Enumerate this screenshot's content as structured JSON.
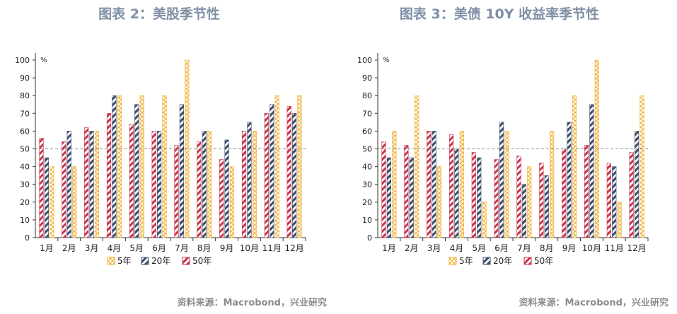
{
  "colors": {
    "five_year": "#f2b33d",
    "twenty_year": "#3d4f6e",
    "fifty_year": "#c8334a",
    "title": "#7f8fa6",
    "reference_line": "#8c8c8c"
  },
  "chart_data": [
    {
      "type": "bar",
      "title": "图表 2：美股季节性",
      "unit": "%",
      "categories": [
        "1月",
        "2月",
        "3月",
        "4月",
        "5月",
        "6月",
        "7月",
        "8月",
        "9月",
        "10月",
        "11月",
        "12月"
      ],
      "ylim": [
        0,
        100
      ],
      "yticks": [
        0,
        10,
        20,
        30,
        40,
        50,
        60,
        70,
        80,
        90,
        100
      ],
      "reference_line": 50,
      "grid": false,
      "legend_position": "bottom",
      "series": [
        {
          "name": "50年",
          "values": [
            56,
            54,
            62,
            70,
            64,
            60,
            52,
            54,
            44,
            60,
            70,
            74
          ]
        },
        {
          "name": "20年",
          "values": [
            45,
            60,
            60,
            80,
            75,
            60,
            75,
            60,
            55,
            65,
            75,
            70
          ]
        },
        {
          "name": "5年",
          "values": [
            40,
            40,
            60,
            80,
            80,
            80,
            100,
            60,
            40,
            60,
            80,
            80
          ]
        }
      ],
      "source": "资料来源：Macrobond，兴业研究"
    },
    {
      "type": "bar",
      "title": "图表 3：美债 10Y 收益率季节性",
      "unit": "%",
      "categories": [
        "1月",
        "2月",
        "3月",
        "4月",
        "5月",
        "6月",
        "7月",
        "8月",
        "9月",
        "10月",
        "11月",
        "12月"
      ],
      "ylim": [
        0,
        100
      ],
      "yticks": [
        0,
        10,
        20,
        30,
        40,
        50,
        60,
        70,
        80,
        90,
        100
      ],
      "reference_line": 50,
      "grid": false,
      "legend_position": "bottom",
      "series": [
        {
          "name": "50年",
          "values": [
            54,
            52,
            60,
            58,
            48,
            44,
            46,
            42,
            50,
            52,
            42,
            48
          ]
        },
        {
          "name": "20年",
          "values": [
            45,
            45,
            60,
            50,
            45,
            65,
            30,
            35,
            65,
            75,
            40,
            60
          ]
        },
        {
          "name": "5年",
          "values": [
            60,
            80,
            40,
            60,
            20,
            60,
            40,
            60,
            80,
            100,
            20,
            80
          ]
        }
      ],
      "source": "资料来源：Macrobond，兴业研究"
    }
  ],
  "legend_order": [
    "5年",
    "20年",
    "50年"
  ]
}
